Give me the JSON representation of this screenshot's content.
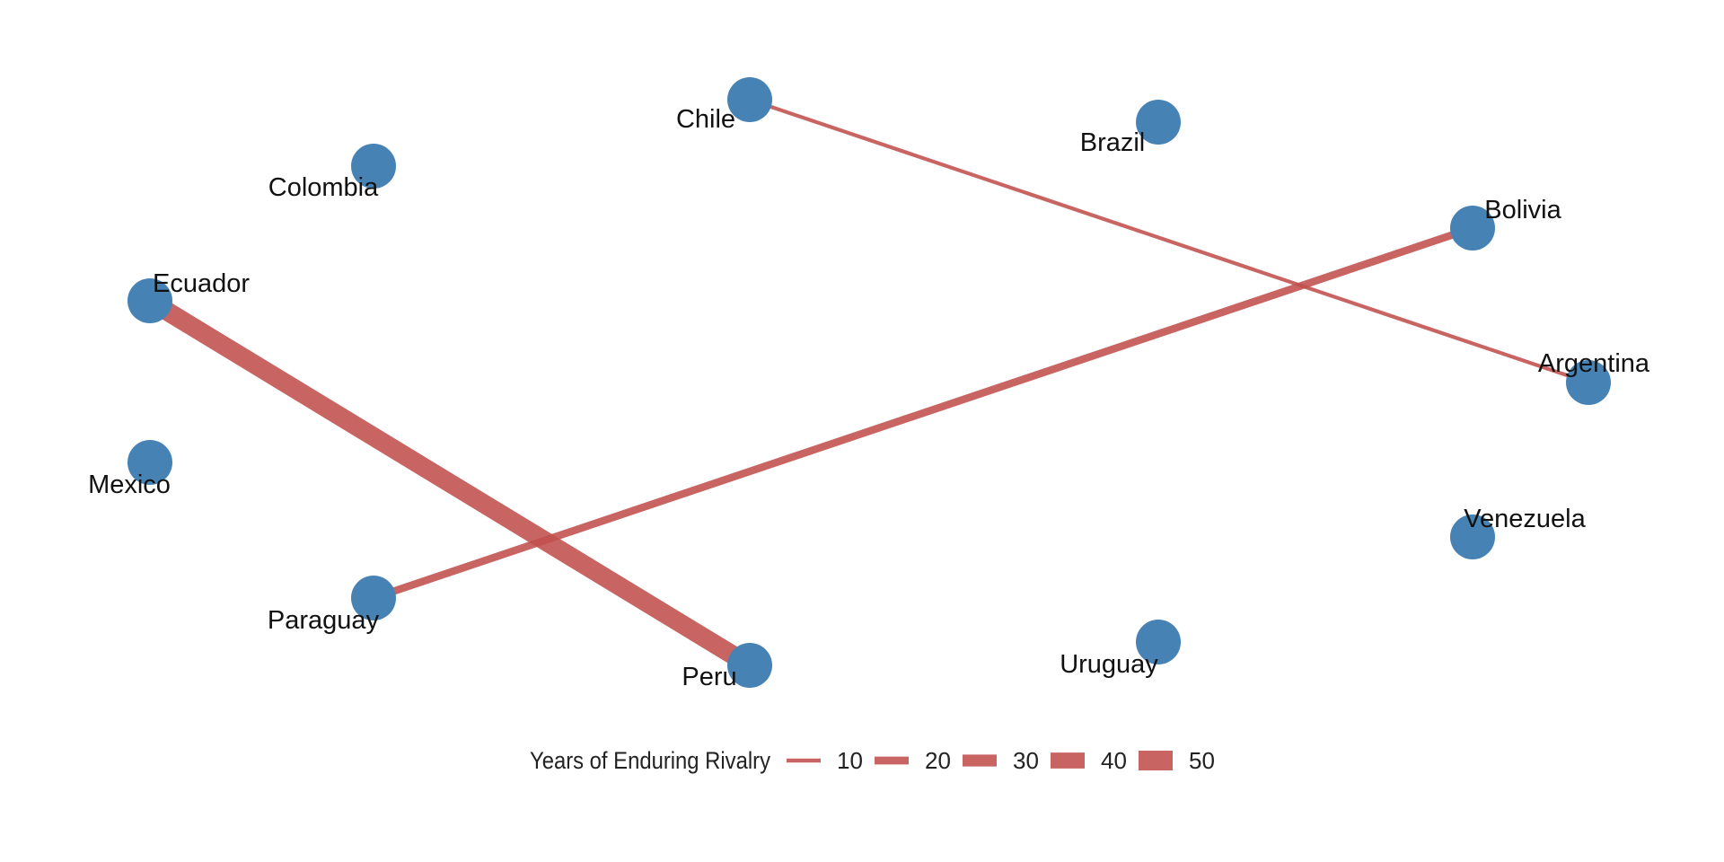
{
  "graph": {
    "nodes": [
      {
        "id": "Chile",
        "label": "Chile"
      },
      {
        "id": "Brazil",
        "label": "Brazil"
      },
      {
        "id": "Colombia",
        "label": "Colombia"
      },
      {
        "id": "Bolivia",
        "label": "Bolivia"
      },
      {
        "id": "Ecuador",
        "label": "Ecuador"
      },
      {
        "id": "Argentina",
        "label": "Argentina"
      },
      {
        "id": "Mexico",
        "label": "Mexico"
      },
      {
        "id": "Venezuela",
        "label": "Venezuela"
      },
      {
        "id": "Paraguay",
        "label": "Paraguay"
      },
      {
        "id": "Uruguay",
        "label": "Uruguay"
      },
      {
        "id": "Peru",
        "label": "Peru"
      }
    ],
    "edges": [
      {
        "source": "Chile",
        "target": "Argentina",
        "years": 10
      },
      {
        "source": "Paraguay",
        "target": "Bolivia",
        "years": 20
      },
      {
        "source": "Ecuador",
        "target": "Peru",
        "years": 50
      }
    ]
  },
  "legend": {
    "title": "Years of Enduring Rivalry",
    "entries": [
      {
        "value": 10,
        "label": "10"
      },
      {
        "value": 20,
        "label": "20"
      },
      {
        "value": 30,
        "label": "30"
      },
      {
        "value": 40,
        "label": "40"
      },
      {
        "value": 50,
        "label": "50"
      }
    ]
  },
  "colors": {
    "node": "#4682B4",
    "edge": "#C0504D",
    "text": "#111111"
  }
}
